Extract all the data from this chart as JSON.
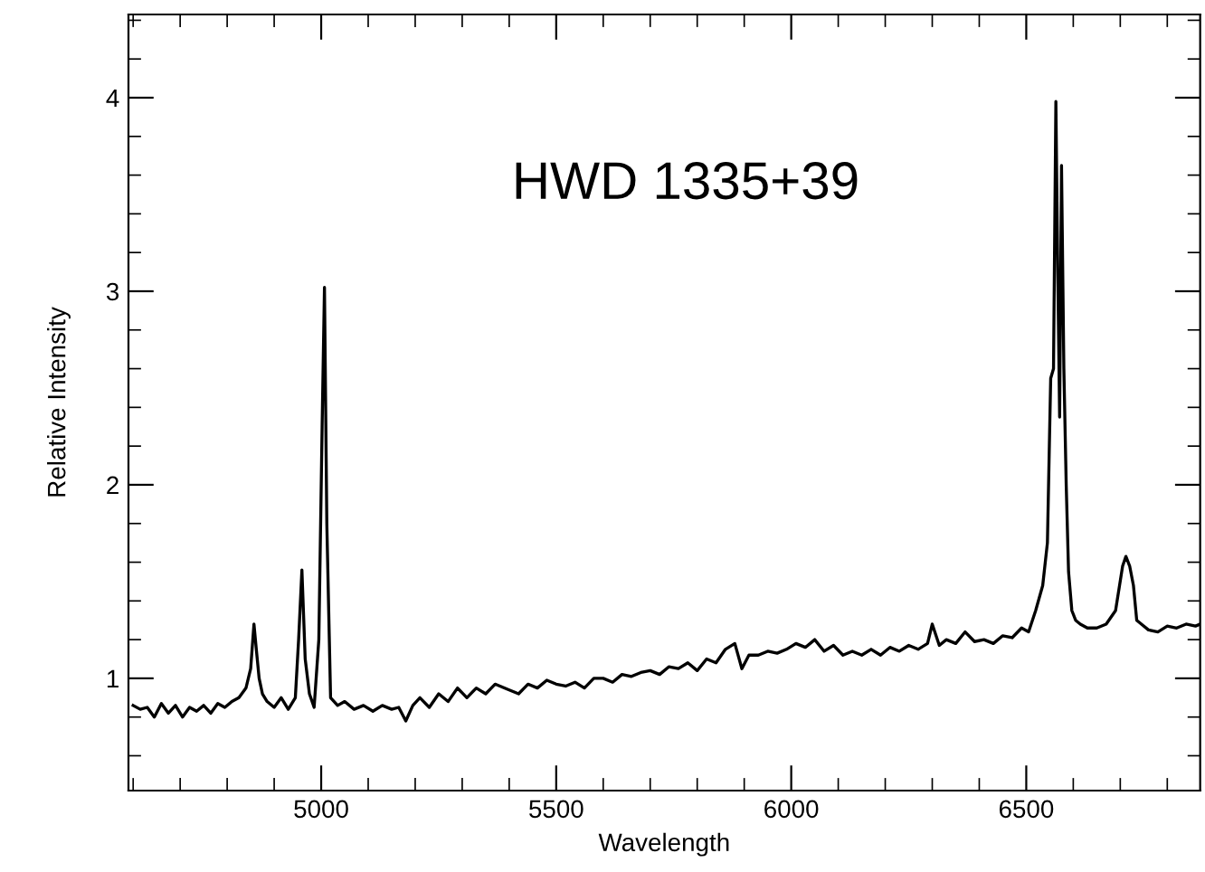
{
  "chart_data": {
    "type": "line",
    "xlabel": "Wavelength",
    "ylabel": "Relative Intensity",
    "annotations": [
      "HWD 1335+39"
    ],
    "xlim": [
      4590,
      6870
    ],
    "ylim": [
      0.42,
      4.43
    ],
    "xticks": [
      5000,
      5500,
      6000,
      6500
    ],
    "yticks": [
      1,
      2,
      3,
      4
    ],
    "grid": false,
    "marker": "none",
    "line_style": "solid",
    "series": [
      {
        "color": "#000000",
        "x": [
          4600,
          4615,
          4630,
          4645,
          4660,
          4675,
          4690,
          4705,
          4720,
          4735,
          4750,
          4765,
          4780,
          4795,
          4810,
          4825,
          4840,
          4850,
          4857,
          4862,
          4868,
          4875,
          4885,
          4900,
          4915,
          4930,
          4945,
          4952,
          4959,
          4966,
          4975,
          4985,
          4995,
          5002,
          5007,
          5012,
          5020,
          5035,
          5050,
          5070,
          5090,
          5110,
          5130,
          5150,
          5165,
          5180,
          5195,
          5210,
          5230,
          5250,
          5270,
          5290,
          5310,
          5330,
          5350,
          5370,
          5400,
          5420,
          5440,
          5460,
          5480,
          5500,
          5520,
          5540,
          5560,
          5580,
          5600,
          5620,
          5640,
          5660,
          5680,
          5700,
          5720,
          5740,
          5760,
          5780,
          5800,
          5820,
          5840,
          5860,
          5880,
          5895,
          5910,
          5930,
          5950,
          5970,
          5990,
          6010,
          6030,
          6050,
          6070,
          6090,
          6110,
          6130,
          6150,
          6170,
          6190,
          6210,
          6230,
          6250,
          6270,
          6290,
          6300,
          6315,
          6330,
          6350,
          6370,
          6390,
          6410,
          6430,
          6450,
          6470,
          6490,
          6505,
          6520,
          6535,
          6545,
          6552,
          6558,
          6563,
          6567,
          6571,
          6575,
          6580,
          6585,
          6590,
          6597,
          6605,
          6615,
          6630,
          6650,
          6670,
          6690,
          6705,
          6712,
          6720,
          6728,
          6735,
          6745,
          6760,
          6780,
          6800,
          6820,
          6840,
          6860,
          6870
        ],
        "values": [
          0.86,
          0.84,
          0.85,
          0.8,
          0.87,
          0.82,
          0.86,
          0.8,
          0.85,
          0.83,
          0.86,
          0.82,
          0.87,
          0.85,
          0.88,
          0.9,
          0.95,
          1.05,
          1.28,
          1.15,
          1.0,
          0.92,
          0.88,
          0.85,
          0.9,
          0.84,
          0.9,
          1.2,
          1.56,
          1.1,
          0.92,
          0.85,
          1.2,
          2.3,
          3.02,
          1.8,
          0.9,
          0.86,
          0.88,
          0.84,
          0.86,
          0.83,
          0.86,
          0.84,
          0.85,
          0.78,
          0.86,
          0.9,
          0.85,
          0.92,
          0.88,
          0.95,
          0.9,
          0.95,
          0.92,
          0.97,
          0.94,
          0.92,
          0.97,
          0.95,
          0.99,
          0.97,
          0.96,
          0.98,
          0.95,
          1.0,
          1.0,
          0.98,
          1.02,
          1.01,
          1.03,
          1.04,
          1.02,
          1.06,
          1.05,
          1.08,
          1.04,
          1.1,
          1.08,
          1.15,
          1.18,
          1.05,
          1.12,
          1.12,
          1.14,
          1.13,
          1.15,
          1.18,
          1.16,
          1.2,
          1.14,
          1.17,
          1.12,
          1.14,
          1.12,
          1.15,
          1.12,
          1.16,
          1.14,
          1.17,
          1.15,
          1.18,
          1.28,
          1.17,
          1.2,
          1.18,
          1.24,
          1.19,
          1.2,
          1.18,
          1.22,
          1.21,
          1.26,
          1.24,
          1.35,
          1.48,
          1.7,
          2.55,
          2.6,
          3.98,
          3.1,
          2.35,
          3.65,
          2.6,
          2.0,
          1.55,
          1.35,
          1.3,
          1.28,
          1.26,
          1.26,
          1.28,
          1.35,
          1.58,
          1.63,
          1.58,
          1.48,
          1.3,
          1.28,
          1.25,
          1.24,
          1.27,
          1.26,
          1.28,
          1.27,
          1.28
        ]
      }
    ]
  }
}
